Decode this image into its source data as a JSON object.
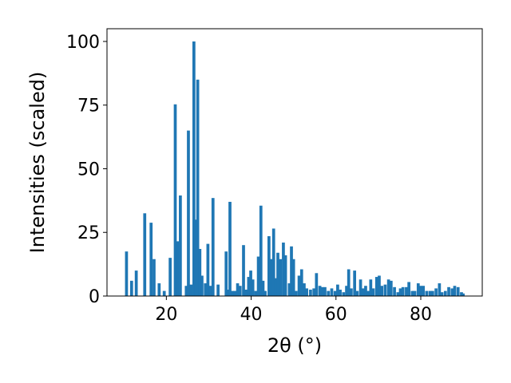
{
  "chart_data": {
    "type": "bar",
    "xlabel": "2θ (°)",
    "ylabel": "Intensities (scaled)",
    "xlim": [
      6.0,
      94.5
    ],
    "ylim": [
      0,
      105
    ],
    "xticks": [
      20,
      40,
      60,
      80
    ],
    "xtick_labels": [
      "20",
      "40",
      "60",
      "80"
    ],
    "yticks": [
      0,
      25,
      50,
      75,
      100
    ],
    "ytick_labels": [
      "0",
      "25",
      "50",
      "75",
      "100"
    ],
    "bar_width": 0.7,
    "bar_color": "#1f77b4",
    "grid": false,
    "bars": [
      {
        "x": 10.6,
        "y": 17.5
      },
      {
        "x": 11.8,
        "y": 6.0
      },
      {
        "x": 12.9,
        "y": 10.0
      },
      {
        "x": 14.9,
        "y": 32.5
      },
      {
        "x": 16.4,
        "y": 28.8
      },
      {
        "x": 17.1,
        "y": 14.5
      },
      {
        "x": 18.3,
        "y": 5.0
      },
      {
        "x": 19.5,
        "y": 2.0
      },
      {
        "x": 20.9,
        "y": 15.0
      },
      {
        "x": 22.1,
        "y": 75.3
      },
      {
        "x": 22.6,
        "y": 21.5
      },
      {
        "x": 23.3,
        "y": 39.5
      },
      {
        "x": 24.7,
        "y": 4.0
      },
      {
        "x": 25.2,
        "y": 65.0
      },
      {
        "x": 25.8,
        "y": 4.5
      },
      {
        "x": 26.5,
        "y": 100.0
      },
      {
        "x": 26.9,
        "y": 30.0
      },
      {
        "x": 27.4,
        "y": 85.0
      },
      {
        "x": 27.9,
        "y": 18.5
      },
      {
        "x": 28.4,
        "y": 8.0
      },
      {
        "x": 29.2,
        "y": 5.0
      },
      {
        "x": 29.8,
        "y": 20.5
      },
      {
        "x": 30.4,
        "y": 4.0
      },
      {
        "x": 31.0,
        "y": 38.5
      },
      {
        "x": 32.2,
        "y": 4.5
      },
      {
        "x": 34.1,
        "y": 17.5
      },
      {
        "x": 34.6,
        "y": 2.5
      },
      {
        "x": 35.0,
        "y": 37.0
      },
      {
        "x": 35.6,
        "y": 2.0
      },
      {
        "x": 36.2,
        "y": 2.0
      },
      {
        "x": 36.8,
        "y": 5.0
      },
      {
        "x": 37.4,
        "y": 4.0
      },
      {
        "x": 38.2,
        "y": 20.0
      },
      {
        "x": 38.8,
        "y": 2.5
      },
      {
        "x": 39.4,
        "y": 7.5
      },
      {
        "x": 39.9,
        "y": 10.0
      },
      {
        "x": 40.4,
        "y": 6.5
      },
      {
        "x": 41.1,
        "y": 2.0
      },
      {
        "x": 41.7,
        "y": 15.5
      },
      {
        "x": 42.3,
        "y": 35.5
      },
      {
        "x": 42.8,
        "y": 6.0
      },
      {
        "x": 43.3,
        "y": 2.0
      },
      {
        "x": 44.2,
        "y": 23.5
      },
      {
        "x": 44.8,
        "y": 14.5
      },
      {
        "x": 45.3,
        "y": 26.5
      },
      {
        "x": 45.8,
        "y": 7.0
      },
      {
        "x": 46.3,
        "y": 17.0
      },
      {
        "x": 46.9,
        "y": 14.5
      },
      {
        "x": 47.6,
        "y": 21.0
      },
      {
        "x": 48.1,
        "y": 16.0
      },
      {
        "x": 49.0,
        "y": 5.0
      },
      {
        "x": 49.5,
        "y": 19.5
      },
      {
        "x": 50.0,
        "y": 14.5
      },
      {
        "x": 50.6,
        "y": 2.0
      },
      {
        "x": 51.3,
        "y": 8.0
      },
      {
        "x": 51.9,
        "y": 10.5
      },
      {
        "x": 52.5,
        "y": 5.0
      },
      {
        "x": 53.1,
        "y": 3.0
      },
      {
        "x": 54.0,
        "y": 2.5
      },
      {
        "x": 54.8,
        "y": 3.0
      },
      {
        "x": 55.4,
        "y": 9.0
      },
      {
        "x": 56.2,
        "y": 4.0
      },
      {
        "x": 56.8,
        "y": 3.5
      },
      {
        "x": 57.4,
        "y": 3.5
      },
      {
        "x": 58.2,
        "y": 2.0
      },
      {
        "x": 59.0,
        "y": 3.0
      },
      {
        "x": 59.8,
        "y": 2.0
      },
      {
        "x": 60.4,
        "y": 4.5
      },
      {
        "x": 61.0,
        "y": 2.5
      },
      {
        "x": 61.8,
        "y": 1.5
      },
      {
        "x": 62.5,
        "y": 4.0
      },
      {
        "x": 63.0,
        "y": 10.5
      },
      {
        "x": 63.6,
        "y": 3.0
      },
      {
        "x": 64.4,
        "y": 10.0
      },
      {
        "x": 65.0,
        "y": 2.0
      },
      {
        "x": 65.8,
        "y": 6.5
      },
      {
        "x": 66.4,
        "y": 3.0
      },
      {
        "x": 67.0,
        "y": 4.0
      },
      {
        "x": 67.6,
        "y": 2.0
      },
      {
        "x": 68.2,
        "y": 6.5
      },
      {
        "x": 68.8,
        "y": 3.0
      },
      {
        "x": 69.6,
        "y": 7.5
      },
      {
        "x": 70.2,
        "y": 8.0
      },
      {
        "x": 70.8,
        "y": 4.0
      },
      {
        "x": 71.6,
        "y": 4.5
      },
      {
        "x": 72.4,
        "y": 6.5
      },
      {
        "x": 73.0,
        "y": 6.0
      },
      {
        "x": 73.8,
        "y": 3.5
      },
      {
        "x": 74.6,
        "y": 1.5
      },
      {
        "x": 75.2,
        "y": 3.0
      },
      {
        "x": 75.8,
        "y": 3.5
      },
      {
        "x": 76.6,
        "y": 3.5
      },
      {
        "x": 77.2,
        "y": 5.5
      },
      {
        "x": 78.0,
        "y": 2.0
      },
      {
        "x": 78.6,
        "y": 2.0
      },
      {
        "x": 79.4,
        "y": 5.0
      },
      {
        "x": 80.0,
        "y": 4.0
      },
      {
        "x": 80.6,
        "y": 4.0
      },
      {
        "x": 81.4,
        "y": 2.0
      },
      {
        "x": 82.2,
        "y": 2.0
      },
      {
        "x": 82.8,
        "y": 2.0
      },
      {
        "x": 83.6,
        "y": 3.0
      },
      {
        "x": 84.4,
        "y": 5.0
      },
      {
        "x": 85.0,
        "y": 1.5
      },
      {
        "x": 85.8,
        "y": 2.0
      },
      {
        "x": 86.6,
        "y": 3.5
      },
      {
        "x": 87.4,
        "y": 3.0
      },
      {
        "x": 88.0,
        "y": 4.0
      },
      {
        "x": 88.8,
        "y": 3.5
      },
      {
        "x": 89.6,
        "y": 1.5
      },
      {
        "x": 90.0,
        "y": 1.0
      }
    ]
  }
}
